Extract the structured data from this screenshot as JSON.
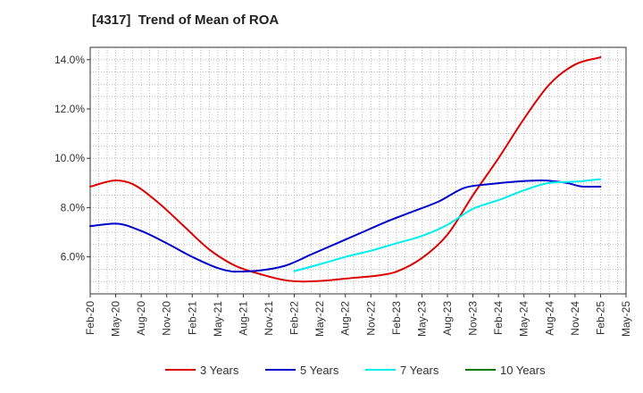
{
  "chart_data": {
    "type": "line",
    "title": "[4317]  Trend of Mean of ROA",
    "xlabel": "",
    "ylabel": "",
    "ylim": [
      4.5,
      14.5
    ],
    "y_ticks": [
      6.0,
      8.0,
      10.0,
      12.0,
      14.0
    ],
    "y_tick_labels": [
      "6.0%",
      "8.0%",
      "10.0%",
      "12.0%",
      "14.0%"
    ],
    "x_range": [
      0,
      63
    ],
    "x_ticks": [
      0,
      3,
      6,
      9,
      12,
      15,
      18,
      21,
      24,
      27,
      30,
      33,
      36,
      39,
      42,
      45,
      48,
      51,
      54,
      57,
      60,
      63
    ],
    "x_tick_labels": [
      "Feb-20",
      "May-20",
      "Aug-20",
      "Nov-20",
      "Feb-21",
      "May-21",
      "Aug-21",
      "Nov-21",
      "Feb-22",
      "May-22",
      "Aug-22",
      "Nov-22",
      "Feb-23",
      "May-23",
      "Aug-23",
      "Nov-23",
      "Feb-24",
      "May-24",
      "Aug-24",
      "Nov-24",
      "Feb-25",
      "May-25"
    ],
    "grid": true,
    "legend_position": "bottom",
    "series": [
      {
        "name": "3 Years",
        "color": "#dd0000",
        "points": [
          [
            0,
            8.85
          ],
          [
            3,
            9.1
          ],
          [
            5,
            8.95
          ],
          [
            8,
            8.2
          ],
          [
            11,
            7.25
          ],
          [
            14,
            6.3
          ],
          [
            17,
            5.65
          ],
          [
            20,
            5.3
          ],
          [
            23,
            5.05
          ],
          [
            25,
            5.0
          ],
          [
            28,
            5.05
          ],
          [
            31,
            5.15
          ],
          [
            34,
            5.25
          ],
          [
            36,
            5.4
          ],
          [
            39,
            5.95
          ],
          [
            42,
            6.9
          ],
          [
            45,
            8.5
          ],
          [
            48,
            10.0
          ],
          [
            51,
            11.6
          ],
          [
            54,
            13.0
          ],
          [
            57,
            13.8
          ],
          [
            60,
            14.1
          ]
        ]
      },
      {
        "name": "5 Years",
        "color": "#0000cc",
        "points": [
          [
            0,
            7.25
          ],
          [
            3,
            7.35
          ],
          [
            6,
            7.05
          ],
          [
            9,
            6.55
          ],
          [
            12,
            6.0
          ],
          [
            15,
            5.55
          ],
          [
            17,
            5.4
          ],
          [
            20,
            5.45
          ],
          [
            23,
            5.65
          ],
          [
            26,
            6.1
          ],
          [
            29,
            6.55
          ],
          [
            32,
            7.0
          ],
          [
            35,
            7.45
          ],
          [
            38,
            7.85
          ],
          [
            41,
            8.25
          ],
          [
            44,
            8.8
          ],
          [
            47,
            8.95
          ],
          [
            50,
            9.05
          ],
          [
            53,
            9.1
          ],
          [
            56,
            9.0
          ],
          [
            58,
            8.85
          ],
          [
            60,
            8.85
          ]
        ]
      },
      {
        "name": "7 Years",
        "color": "#00eeee",
        "points": [
          [
            24,
            5.42
          ],
          [
            27,
            5.7
          ],
          [
            30,
            6.0
          ],
          [
            33,
            6.25
          ],
          [
            36,
            6.55
          ],
          [
            39,
            6.85
          ],
          [
            42,
            7.3
          ],
          [
            45,
            7.95
          ],
          [
            48,
            8.3
          ],
          [
            51,
            8.7
          ],
          [
            54,
            9.0
          ],
          [
            57,
            9.05
          ],
          [
            60,
            9.15
          ]
        ]
      },
      {
        "name": "10 Years",
        "color": "#007700",
        "points": []
      }
    ]
  }
}
